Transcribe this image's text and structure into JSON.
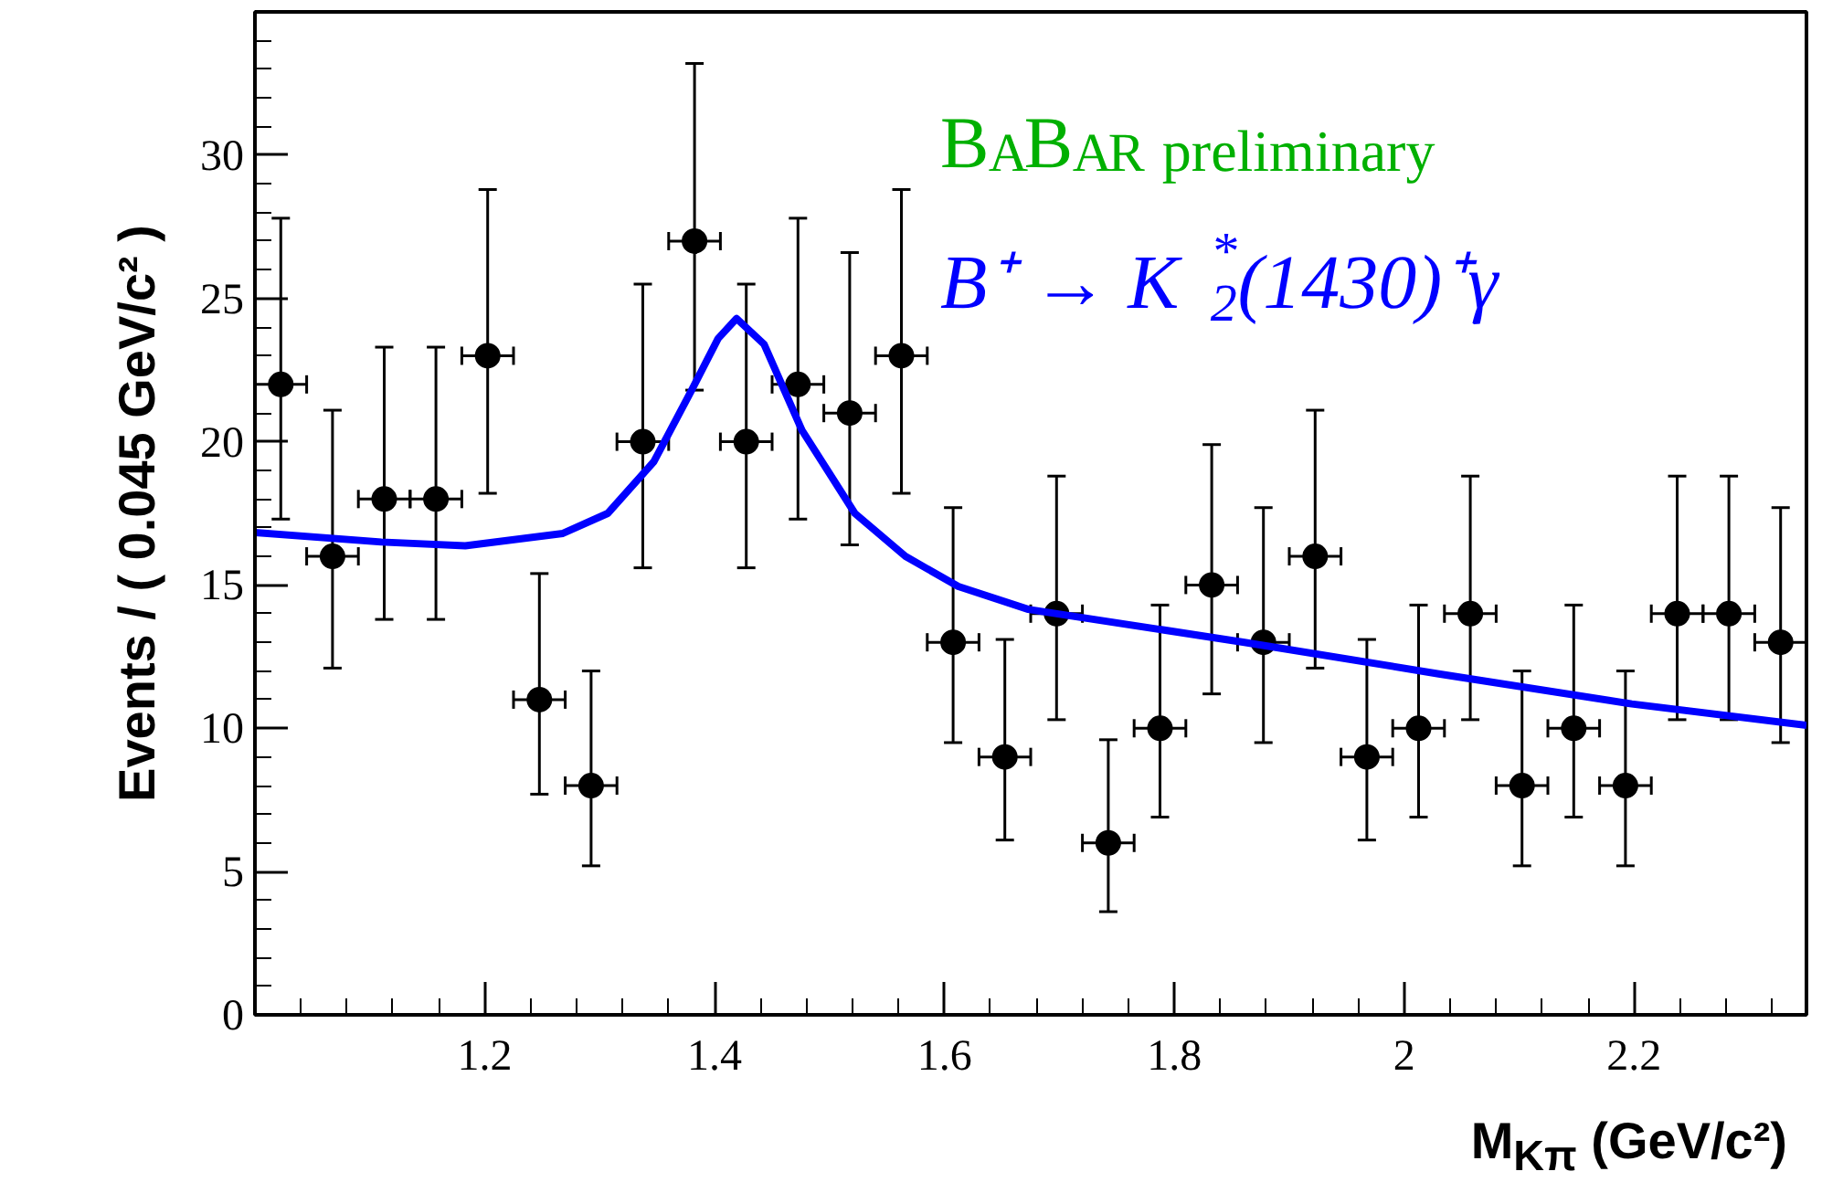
{
  "chart_data": {
    "type": "scatter",
    "xlabel": "M$_{Kπ}$ (GeV/c²)",
    "ylabel": "Events / ( 0.045 GeV/c² )",
    "xlim": [
      1.0,
      2.35
    ],
    "xticks": [
      1.2,
      1.4,
      1.6,
      1.8,
      {
        "value": 2.0,
        "label": "2"
      },
      2.2
    ],
    "ylim": [
      0,
      35
    ],
    "yticks": [
      0,
      5,
      10,
      15,
      20,
      25,
      30
    ],
    "annotations": [
      "BABAR preliminary",
      "B⁺ → K$_{2}$$^{*}$(1430)⁺γ"
    ],
    "series": [
      {
        "marker": "circle",
        "color": "#000000",
        "x": [
          1.0225,
          1.0675,
          1.1125,
          1.1575,
          1.2025,
          1.2475,
          1.2925,
          1.3375,
          1.3825,
          1.4275,
          1.4725,
          1.5175,
          1.5625,
          1.6075,
          1.6525,
          1.6975,
          1.7425,
          1.7875,
          1.8325,
          1.8775,
          1.9225,
          1.9675,
          2.0125,
          2.0575,
          2.1025,
          2.1475,
          2.1925,
          2.2375,
          2.2825,
          2.3275
        ],
        "values": [
          22,
          16,
          18,
          18,
          23,
          11,
          8,
          20,
          27,
          20,
          22,
          21,
          23,
          13,
          9,
          14,
          6,
          10,
          15,
          13,
          16,
          9,
          10,
          14,
          8,
          10,
          8,
          14,
          14,
          13
        ],
        "errors": [
          [
            17.3,
            27.8
          ],
          [
            12.1,
            21.1
          ],
          [
            13.8,
            23.3
          ],
          [
            13.8,
            23.3
          ],
          [
            18.2,
            28.8
          ],
          [
            7.7,
            15.4
          ],
          [
            5.2,
            12.0
          ],
          [
            15.6,
            25.5
          ],
          [
            21.8,
            33.2
          ],
          [
            15.6,
            25.5
          ],
          [
            17.3,
            27.8
          ],
          [
            16.4,
            26.6
          ],
          [
            18.2,
            28.8
          ],
          [
            9.5,
            17.7
          ],
          [
            6.1,
            13.1
          ],
          [
            10.3,
            18.8
          ],
          [
            3.6,
            9.6
          ],
          [
            6.9,
            14.3
          ],
          [
            11.2,
            19.9
          ],
          [
            9.5,
            17.7
          ],
          [
            12.1,
            21.1
          ],
          [
            6.1,
            13.1
          ],
          [
            6.9,
            14.3
          ],
          [
            10.3,
            18.8
          ],
          [
            5.2,
            12.0
          ],
          [
            6.9,
            14.3
          ],
          [
            5.2,
            12.0
          ],
          [
            10.3,
            18.8
          ],
          [
            10.3,
            18.8
          ],
          [
            9.5,
            17.7
          ]
        ],
        "xerrors": [
          0.0225,
          0.0225,
          0.0225,
          0.0225,
          0.0225,
          0.0225,
          0.0225,
          0.0225,
          0.0225,
          0.0225,
          0.0225,
          0.0225,
          0.0225,
          0.0225,
          0.0225,
          0.0225,
          0.0225,
          0.0225,
          0.0225,
          0.0225,
          0.0225,
          0.0225,
          0.0225,
          0.0225,
          0.0225,
          0.0225,
          0.0225,
          0.0225,
          0.0225,
          0.0225
        ]
      },
      {
        "type": "line",
        "color": "#0000ff",
        "x": [
          1.0,
          1.11,
          1.183,
          1.268,
          1.307,
          1.347,
          1.38,
          1.403,
          1.419,
          1.443,
          1.476,
          1.522,
          1.566,
          1.612,
          1.673,
          1.861,
          2.03,
          2.198,
          2.35
        ],
        "values": [
          16.83,
          16.5,
          16.37,
          16.8,
          17.5,
          19.3,
          21.8,
          23.6,
          24.3,
          23.4,
          20.4,
          17.5,
          16.0,
          14.95,
          14.15,
          13.0,
          11.9,
          10.85,
          10.1
        ]
      }
    ]
  }
}
